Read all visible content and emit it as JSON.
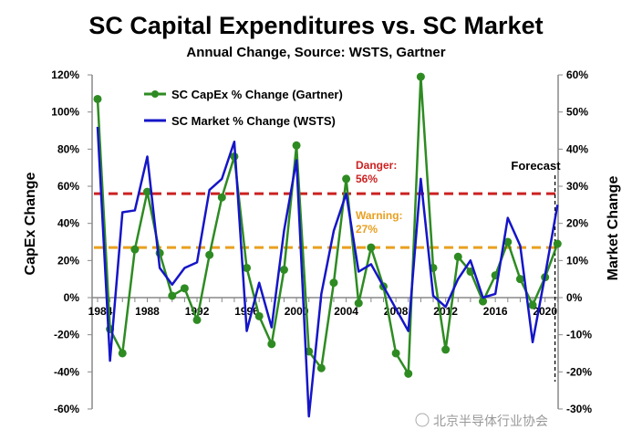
{
  "chart_data": {
    "type": "line",
    "title": "SC Capital Expenditures vs. SC Market",
    "subtitle": "Annual Change, Source: WSTS, Gartner",
    "ylabel": "CapEx Change",
    "y2label": "Market Change",
    "ylim": [
      -60,
      120
    ],
    "y2lim": [
      -30,
      60
    ],
    "yticks": [
      "-60%",
      "-40%",
      "-20%",
      "0%",
      "20%",
      "40%",
      "60%",
      "80%",
      "100%",
      "120%"
    ],
    "y2ticks": [
      "-30%",
      "-20%",
      "-10%",
      "0%",
      "10%",
      "20%",
      "30%",
      "40%",
      "50%",
      "60%"
    ],
    "xticks": [
      "1984",
      "1988",
      "1992",
      "1996",
      "2000",
      "2004",
      "2008",
      "2012",
      "2016",
      "2020"
    ],
    "x": [
      1984,
      1985,
      1986,
      1987,
      1988,
      1989,
      1990,
      1991,
      1992,
      1993,
      1994,
      1995,
      1996,
      1997,
      1998,
      1999,
      2000,
      2001,
      2002,
      2003,
      2004,
      2005,
      2006,
      2007,
      2008,
      2009,
      2010,
      2011,
      2012,
      2013,
      2014,
      2015,
      2016,
      2017,
      2018,
      2019,
      2020,
      2021
    ],
    "series": [
      {
        "name": "SC CapEx % Change (Gartner)",
        "axis": "left",
        "color": "#2e8b22",
        "values": [
          107,
          -17,
          -30,
          26,
          57,
          24,
          1,
          5,
          -12,
          23,
          54,
          76,
          16,
          -10,
          -25,
          15,
          82,
          -29,
          -38,
          8,
          64,
          -3,
          27,
          6,
          -30,
          -41,
          119,
          16,
          -28,
          22,
          14,
          -2,
          12,
          30,
          10,
          -4,
          11,
          29
        ]
      },
      {
        "name": "SC Market % Change (WSTS)",
        "axis": "right",
        "color": "#1515c8",
        "values": [
          46,
          -17,
          23,
          23.5,
          38,
          8,
          3.5,
          8,
          9.5,
          29,
          32,
          42,
          -9,
          4,
          -8,
          18,
          37,
          -32,
          1,
          18,
          28,
          7,
          9,
          3,
          -3,
          -9,
          32,
          0.5,
          -2.5,
          5,
          10,
          0,
          1,
          21.5,
          14,
          -12,
          6,
          25
        ]
      }
    ],
    "thresholds": [
      {
        "label": "Danger:",
        "value_label": "56%",
        "value": 56,
        "color": "#cc2222"
      },
      {
        "label": "Warning:",
        "value_label": "27%",
        "value": 27,
        "color": "#e8a020"
      }
    ],
    "forecast_label": "Forecast",
    "forecast_start": 2020.8,
    "legend_placement": "top-left"
  },
  "watermark": "北京半导体行业协会"
}
